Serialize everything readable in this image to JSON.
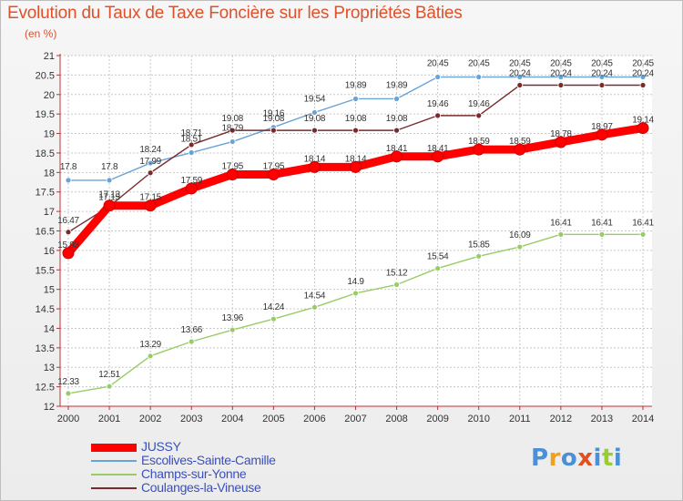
{
  "chart_data": {
    "type": "line",
    "title": "Evolution du Taux de Taxe Foncière sur les Propriétés Bâties",
    "subtitle": "(en %)",
    "x": [
      "2000",
      "2001",
      "2002",
      "2003",
      "2004",
      "2005",
      "2006",
      "2007",
      "2008",
      "2009",
      "2010",
      "2011",
      "2012",
      "2013",
      "2014"
    ],
    "ylim": [
      12,
      21
    ],
    "yticks": [
      "12",
      "12.5",
      "13",
      "13.5",
      "14",
      "14.5",
      "15",
      "15.5",
      "16",
      "16.5",
      "17",
      "17.5",
      "18",
      "18.5",
      "19",
      "19.5",
      "20",
      "20.5",
      "21"
    ],
    "grid": true,
    "legend_position": "bottom-left",
    "series": [
      {
        "name": "JUSSY",
        "color": "#ff0000",
        "values": [
          15.93,
          17.15,
          17.15,
          17.59,
          17.95,
          17.95,
          18.14,
          18.14,
          18.41,
          18.41,
          18.59,
          18.59,
          18.78,
          18.97,
          19.14
        ],
        "labels": [
          "15.93",
          "17.15",
          "17.15",
          "17.59",
          "17.95",
          "17.95",
          "18.14",
          "18.14",
          "18.41",
          "18.41",
          "18.59",
          "18.59",
          "18.78",
          "18.97",
          "19.14"
        ]
      },
      {
        "name": "Escolives-Sainte-Camille",
        "color": "#6aa3d6",
        "values": [
          17.8,
          17.8,
          18.24,
          18.51,
          18.79,
          19.16,
          19.54,
          19.89,
          19.89,
          20.45,
          20.45,
          20.45,
          20.45,
          20.45,
          20.45
        ],
        "labels": [
          "17.8",
          "17.8",
          "18.24",
          "18.51",
          "18.79",
          "19.16",
          "19.54",
          "19.89",
          "19.89",
          "20.45",
          "20.45",
          "20.45",
          "20.45",
          "20.45",
          "20.45"
        ]
      },
      {
        "name": "Champs-sur-Yonne",
        "color": "#99cc66",
        "values": [
          12.33,
          12.51,
          13.29,
          13.66,
          13.96,
          14.24,
          14.54,
          14.9,
          15.12,
          15.54,
          15.85,
          16.09,
          16.41,
          16.41,
          16.41
        ],
        "labels": [
          "12.33",
          "12.51",
          "13.29",
          "13.66",
          "13.96",
          "14.24",
          "14.54",
          "14.9",
          "15.12",
          "15.54",
          "15.85",
          "16.09",
          "16.41",
          "16.41",
          "16.41"
        ]
      },
      {
        "name": "Coulanges-la-Vineuse",
        "color": "#7a2a2a",
        "values": [
          16.47,
          17.13,
          17.99,
          18.71,
          19.08,
          19.08,
          19.08,
          19.08,
          19.08,
          19.46,
          19.46,
          20.24,
          20.24,
          20.24,
          20.24
        ],
        "labels": [
          "16.47",
          "17.13",
          "17.99",
          "18.71",
          "19.08",
          "19.08",
          "19.08",
          "19.08",
          "19.08",
          "19.46",
          "19.46",
          "20.24",
          "20.24",
          "20.24",
          "20.24"
        ]
      }
    ]
  },
  "logo": {
    "letters": [
      "P",
      "r",
      "o",
      "x",
      "i",
      "t",
      "i"
    ],
    "colors": [
      "#4a90d9",
      "#f0a020",
      "#4a90d9",
      "#e05020",
      "#4a90d9",
      "#99cc33",
      "#4a90d9"
    ]
  }
}
